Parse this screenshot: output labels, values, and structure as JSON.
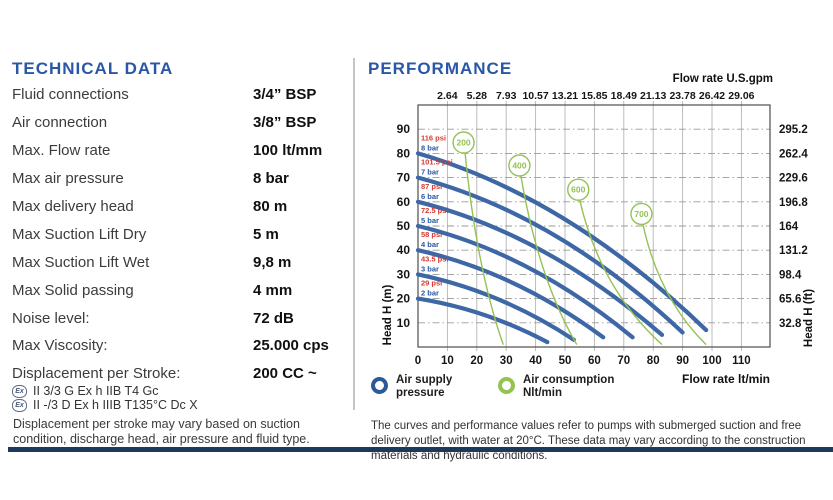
{
  "left": {
    "title": "TECHNICAL DATA",
    "rows": [
      {
        "label": "Fluid connections",
        "value": "3/4” BSP"
      },
      {
        "label": "Air connection",
        "value": "3/8” BSP"
      },
      {
        "label": "Max. Flow rate",
        "value": "100 lt/mm"
      },
      {
        "label": "Max air pressure",
        "value": "8 bar"
      },
      {
        "label": "Max delivery head",
        "value": "80 m"
      },
      {
        "label": "Max Suction Lift Dry",
        "value": "5 m"
      },
      {
        "label": "Max Suction Lift Wet",
        "value": "9,8 m"
      },
      {
        "label": "Max Solid passing",
        "value": "4 mm"
      },
      {
        "label": "Noise level:",
        "value": "72 dB"
      },
      {
        "label": "Max Viscosity:",
        "value": "25.000 cps"
      },
      {
        "label": "Displacement per Stroke:",
        "value": "200 CC ~"
      }
    ],
    "certifications": [
      "II 3/3 G Ex h IIB T4 Gc",
      "II -/3 D Ex h IIIB T135°C Dc X"
    ],
    "cert_icon": "ex-atex-icon",
    "note": "Displacement per stroke may vary based on suction condition, discharge head, air pressure and fluid type."
  },
  "right": {
    "title": "PERFORMANCE",
    "legend": [
      {
        "icon": "blue-ring-icon",
        "lines": [
          "Air supply",
          "pressure"
        ]
      },
      {
        "icon": "green-ring-icon",
        "lines": [
          "Air consumption",
          "Nlt/min"
        ]
      }
    ],
    "caption": "The curves and performance values refer to pumps with submerged suction and free delivery outlet, with water at 20°C. These data may vary according to the construction materials and hydraulic conditions."
  },
  "colors": {
    "accent_navy": "#2a57a5",
    "curve_blue": "#3e67a5",
    "psi_red": "#d6392e",
    "consumption_green": "#94c253",
    "grid_gray": "#b5b5b5",
    "axis_text": "#151515",
    "footer_bar_navy": "#1d3a5c"
  },
  "chart_data": {
    "type": "line",
    "title": "",
    "x_axis_top": {
      "label": "Flow rate U.S.gpm",
      "ticks": [
        "2.64",
        "5.28",
        "7.93",
        "10.57",
        "13.21",
        "15.85",
        "18.49",
        "21.13",
        "23.78",
        "26.42",
        "29.06"
      ]
    },
    "x_axis_bottom": {
      "label": "Flow rate  lt/min",
      "ticks": [
        "0",
        "10",
        "20",
        "30",
        "40",
        "50",
        "60",
        "70",
        "80",
        "90",
        "100",
        "110"
      ]
    },
    "y_axis_left": {
      "label": "Head H (m)",
      "ticks": [
        "90",
        "80",
        "70",
        "60",
        "50",
        "40",
        "30",
        "20",
        "10"
      ]
    },
    "y_axis_right": {
      "label": "Head H (ft)",
      "ticks": [
        "295.2",
        "262.4",
        "229.6",
        "196.8",
        "164",
        "131.2",
        "98.4",
        "65.6",
        "32.8"
      ]
    },
    "xlim": [
      0,
      120
    ],
    "ylim": [
      0,
      100
    ],
    "grid": "both",
    "pressure_curves": [
      {
        "psi_label": "116 psi",
        "bar_label": "8 bar",
        "start": [
          0,
          80
        ],
        "ctrl": [
          51,
          62
        ],
        "end": [
          98,
          7
        ]
      },
      {
        "psi_label": "101.5 psi",
        "bar_label": "7 bar",
        "start": [
          0,
          70
        ],
        "ctrl": [
          47,
          55
        ],
        "end": [
          90,
          6
        ]
      },
      {
        "psi_label": "87 psi",
        "bar_label": "6 bar",
        "start": [
          0,
          60
        ],
        "ctrl": [
          43,
          47
        ],
        "end": [
          83,
          5
        ]
      },
      {
        "psi_label": "72.5 psi",
        "bar_label": "5 bar",
        "start": [
          0,
          50
        ],
        "ctrl": [
          38,
          39
        ],
        "end": [
          73,
          4
        ]
      },
      {
        "psi_label": "58 psi",
        "bar_label": "4 bar",
        "start": [
          0,
          40
        ],
        "ctrl": [
          33,
          31
        ],
        "end": [
          63,
          4
        ]
      },
      {
        "psi_label": "43.5 psi",
        "bar_label": "3 bar",
        "start": [
          0,
          30
        ],
        "ctrl": [
          28,
          23
        ],
        "end": [
          53,
          3
        ]
      },
      {
        "psi_label": "29 psi",
        "bar_label": "2 bar",
        "start": [
          0,
          20
        ],
        "ctrl": [
          23,
          15.5
        ],
        "end": [
          44,
          2
        ]
      }
    ],
    "consumption_curves": [
      {
        "label": "200",
        "circle": [
          15.5,
          84.5
        ],
        "ctrl": [
          20,
          32
        ],
        "end": [
          29,
          1
        ]
      },
      {
        "label": "400",
        "circle": [
          34.5,
          75
        ],
        "ctrl": [
          41,
          28
        ],
        "end": [
          54,
          1
        ]
      },
      {
        "label": "600",
        "circle": [
          54.5,
          65
        ],
        "ctrl": [
          62,
          24
        ],
        "end": [
          83,
          1
        ]
      },
      {
        "label": "700",
        "circle": [
          76,
          55
        ],
        "ctrl": [
          82,
          20
        ],
        "end": [
          98,
          1
        ]
      }
    ]
  }
}
